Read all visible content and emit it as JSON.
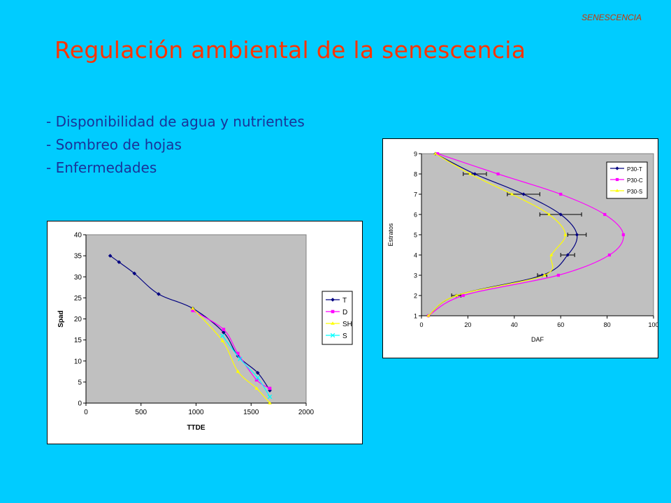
{
  "header": {
    "corner_label": "SENESCENCIA",
    "title": "Regulación ambiental de la senescencia"
  },
  "bullets": [
    "- Disponibilidad de agua y nutrientes",
    "- Sombreo de hojas",
    "- Enfermedades"
  ],
  "colors": {
    "background": "#00ccff",
    "title": "#ff3300",
    "bullets": "#1a3399",
    "plot_area": "#c0c0c0"
  },
  "chart_data": [
    {
      "type": "line",
      "xlabel": "TTDE",
      "ylabel": "Spad",
      "xlim": [
        0,
        2000
      ],
      "ylim": [
        0,
        40
      ],
      "xticks": [
        0,
        500,
        1000,
        1500,
        2000
      ],
      "yticks": [
        0,
        5,
        10,
        15,
        20,
        25,
        30,
        35,
        40
      ],
      "legend": "right",
      "grid": false,
      "series": [
        {
          "name": "T",
          "color": "#000080",
          "marker": "diamond",
          "x": [
            220,
            300,
            440,
            660,
            970,
            1250,
            1380,
            1560,
            1670
          ],
          "y": [
            35,
            33.5,
            30.8,
            25.9,
            22.5,
            16.8,
            11.2,
            7.2,
            3
          ]
        },
        {
          "name": "D",
          "color": "#ff00ff",
          "marker": "square",
          "x": [
            970,
            1250,
            1380,
            1550,
            1670
          ],
          "y": [
            22,
            17.5,
            11.8,
            5.5,
            3.5
          ]
        },
        {
          "name": "SH",
          "color": "#ffff00",
          "marker": "triangle",
          "x": [
            970,
            1240,
            1380,
            1550,
            1670
          ],
          "y": [
            22.5,
            14.8,
            7.5,
            3.5,
            0
          ]
        },
        {
          "name": "S",
          "color": "#00ffff",
          "marker": "x",
          "x": [
            1240,
            1400,
            1560,
            1670
          ],
          "y": [
            16,
            10.5,
            6,
            1.5
          ]
        }
      ]
    },
    {
      "type": "line",
      "xlabel": "DAF",
      "ylabel": "Estratos",
      "xlim": [
        0,
        100
      ],
      "ylim": [
        1,
        9
      ],
      "xticks": [
        0,
        20,
        40,
        60,
        80,
        100
      ],
      "yticks": [
        1,
        2,
        3,
        4,
        5,
        6,
        7,
        8,
        9
      ],
      "legend": "top-right",
      "grid": false,
      "series": [
        {
          "name": "P30-T",
          "color": "#000080",
          "marker": "diamond",
          "x": [
            3,
            15,
            52,
            63,
            67,
            60,
            44,
            23,
            6
          ],
          "y": [
            1,
            2,
            3,
            4,
            5,
            6,
            7,
            8,
            9
          ],
          "err": [
            0,
            2,
            2,
            3,
            4,
            9,
            7,
            5,
            0
          ]
        },
        {
          "name": "P30-C",
          "color": "#ff00ff",
          "marker": "square",
          "x": [
            3,
            18,
            59,
            81,
            87,
            79,
            60,
            33,
            7
          ],
          "y": [
            1,
            2,
            3,
            4,
            5,
            6,
            7,
            8,
            9
          ]
        },
        {
          "name": "P30-S",
          "color": "#ffff00",
          "marker": "triangle",
          "x": [
            3,
            15,
            53,
            56,
            62,
            55,
            39,
            21,
            6
          ],
          "y": [
            1,
            2,
            3,
            4,
            5,
            6,
            7,
            8,
            9
          ]
        }
      ]
    }
  ]
}
